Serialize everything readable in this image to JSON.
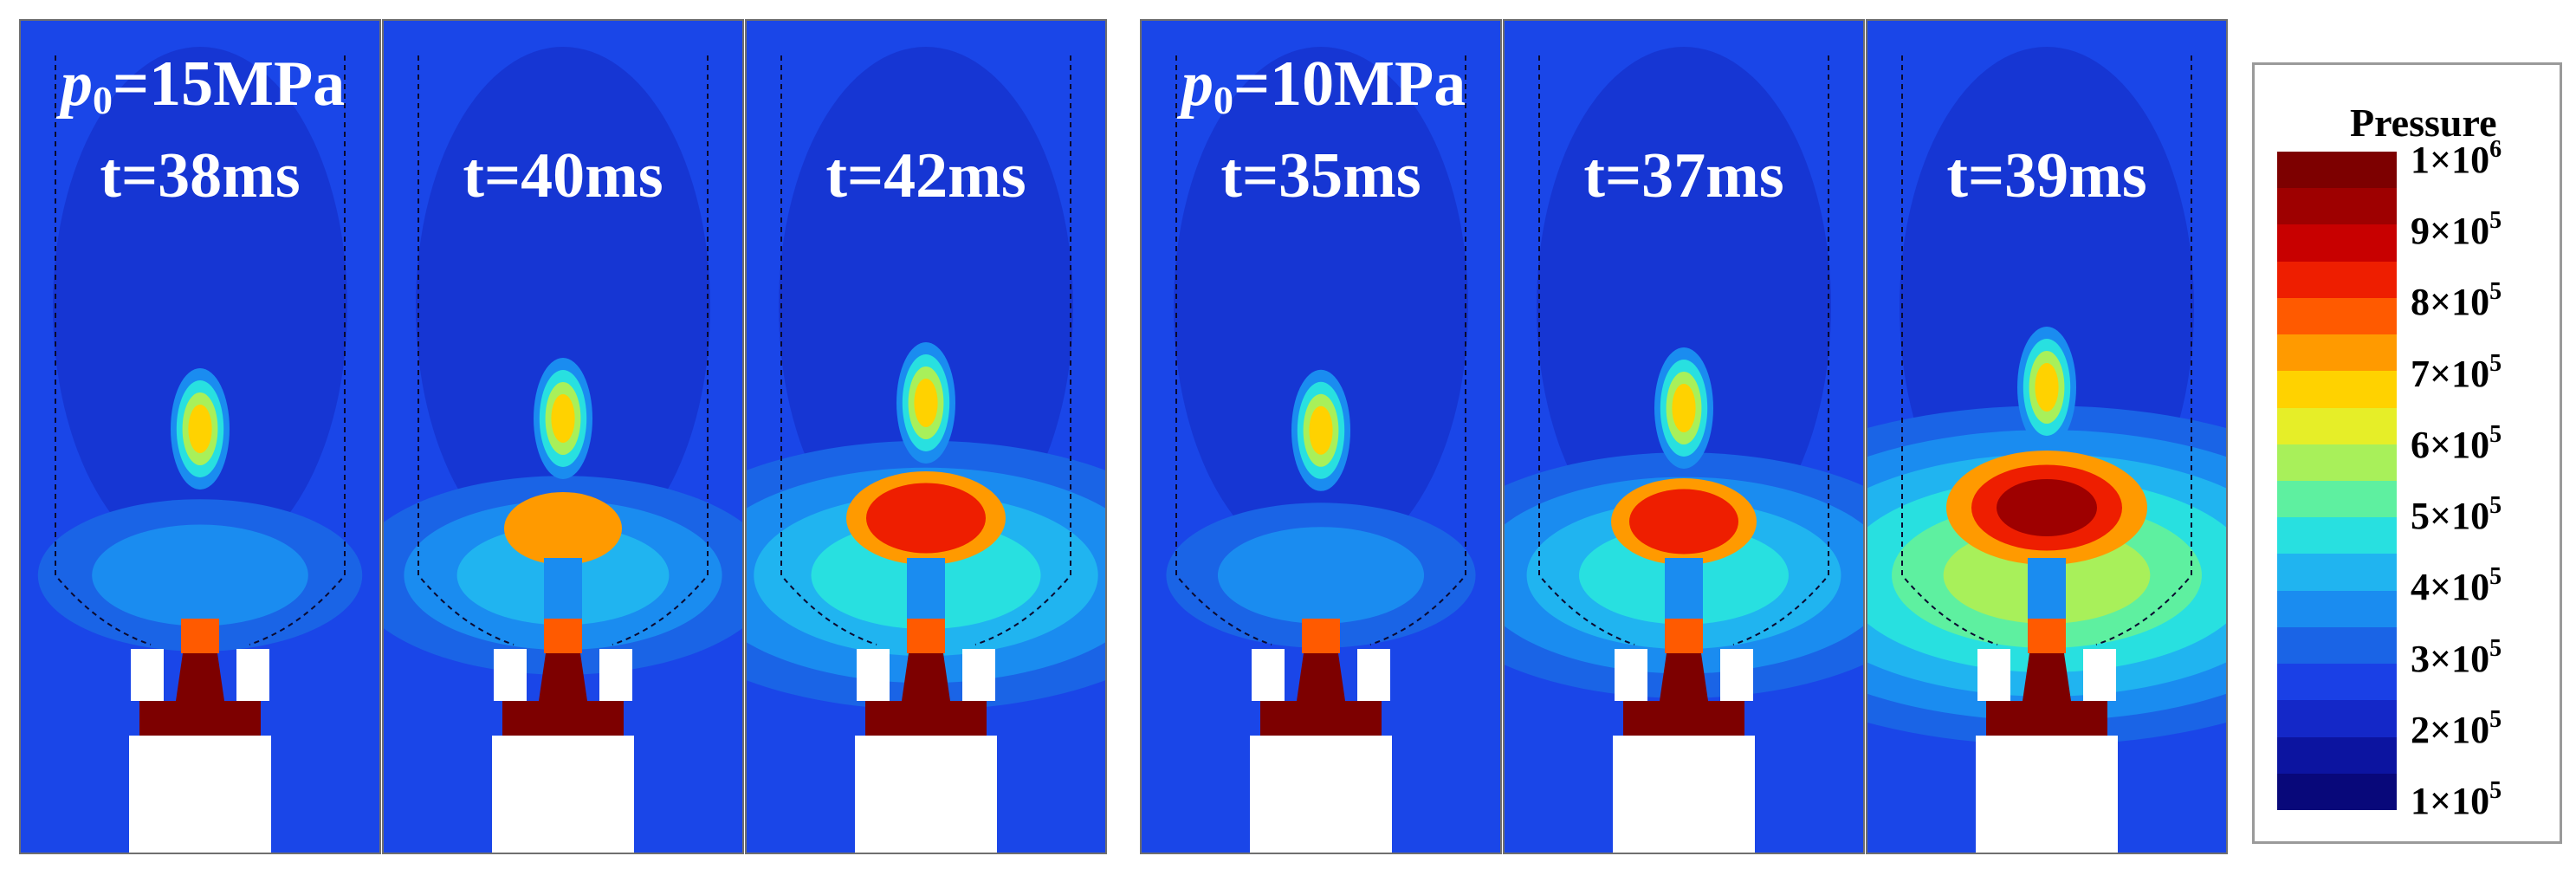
{
  "groups": [
    {
      "p0_symbol": "p",
      "p0_sub": "0",
      "p0_value": "=15MPa",
      "panels": [
        {
          "time": "t=38ms",
          "intensity": 0.15
        },
        {
          "time": "t=40ms",
          "intensity": 0.35
        },
        {
          "time": "t=42ms",
          "intensity": 0.65
        }
      ]
    },
    {
      "p0_symbol": "p",
      "p0_sub": "0",
      "p0_value": "=10MPa",
      "panels": [
        {
          "time": "t=35ms",
          "intensity": 0.12
        },
        {
          "time": "t=37ms",
          "intensity": 0.55
        },
        {
          "time": "t=39ms",
          "intensity": 0.95
        }
      ]
    }
  ],
  "legend": {
    "title": "Pressure",
    "ticks": [
      {
        "base": "1×10",
        "exp": "6"
      },
      {
        "base": "9×10",
        "exp": "5"
      },
      {
        "base": "8×10",
        "exp": "5"
      },
      {
        "base": "7×10",
        "exp": "5"
      },
      {
        "base": "6×10",
        "exp": "5"
      },
      {
        "base": "5×10",
        "exp": "5"
      },
      {
        "base": "4×10",
        "exp": "5"
      },
      {
        "base": "3×10",
        "exp": "5"
      },
      {
        "base": "2×10",
        "exp": "5"
      },
      {
        "base": "1×10",
        "exp": "5"
      }
    ],
    "colors": [
      "#7d0000",
      "#9e0000",
      "#c80000",
      "#ee1e00",
      "#ff5a00",
      "#ff9a00",
      "#ffd200",
      "#e6ee28",
      "#a8f05a",
      "#5ef0a0",
      "#28e0e0",
      "#20b4f0",
      "#1a8cf0",
      "#1a64e6",
      "#1a40e6",
      "#1428c8",
      "#0c14a0",
      "#08087a"
    ]
  }
}
